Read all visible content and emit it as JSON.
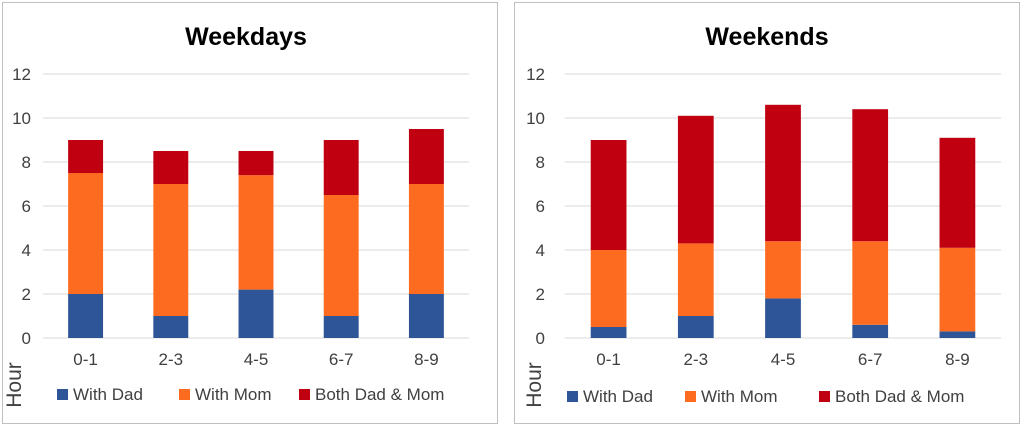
{
  "colors": {
    "with_dad": "#2e5597",
    "with_mom": "#fd6b20",
    "both": "#c00010"
  },
  "chart_data": [
    {
      "type": "bar",
      "stacked": true,
      "title": "Weekdays",
      "ylabel": "Hour",
      "xlabel": "",
      "ylim": [
        0,
        12
      ],
      "yticks": [
        0,
        2,
        4,
        6,
        8,
        10,
        12
      ],
      "categories": [
        "0-1",
        "2-3",
        "4-5",
        "6-7",
        "8-9"
      ],
      "grid": true,
      "legend": "bottom",
      "series": [
        {
          "name": "With Dad",
          "color_key": "with_dad",
          "values": [
            2.0,
            1.0,
            2.2,
            1.0,
            2.0
          ]
        },
        {
          "name": "With Mom",
          "color_key": "with_mom",
          "values": [
            5.5,
            6.0,
            5.2,
            5.5,
            5.0
          ]
        },
        {
          "name": "Both Dad & Mom",
          "color_key": "both",
          "values": [
            1.5,
            1.5,
            1.1,
            2.5,
            2.5
          ]
        }
      ]
    },
    {
      "type": "bar",
      "stacked": true,
      "title": "Weekends",
      "ylabel": "Hour",
      "xlabel": "",
      "ylim": [
        0,
        12
      ],
      "yticks": [
        0,
        2,
        4,
        6,
        8,
        10,
        12
      ],
      "categories": [
        "0-1",
        "2-3",
        "4-5",
        "6-7",
        "8-9"
      ],
      "grid": true,
      "legend": "bottom",
      "series": [
        {
          "name": "With Dad",
          "color_key": "with_dad",
          "values": [
            0.5,
            1.0,
            1.8,
            0.6,
            0.3
          ]
        },
        {
          "name": "With Mom",
          "color_key": "with_mom",
          "values": [
            3.5,
            3.3,
            2.6,
            3.8,
            3.8
          ]
        },
        {
          "name": "Both Dad & Mom",
          "color_key": "both",
          "values": [
            5.0,
            5.8,
            6.2,
            6.0,
            5.0
          ]
        }
      ]
    }
  ]
}
